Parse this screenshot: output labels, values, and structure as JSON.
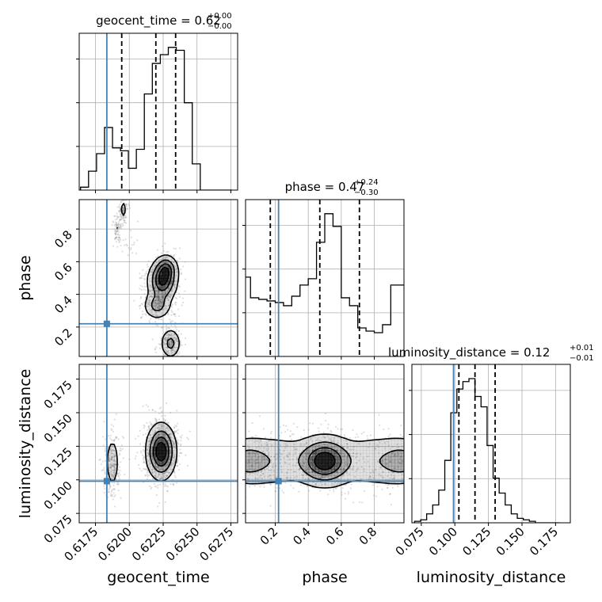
{
  "chart_data": {
    "type": "corner",
    "parameters": [
      "geocent_time",
      "phase",
      "luminosity_distance"
    ],
    "truth": {
      "geocent_time": 0.61834,
      "phase": 0.22,
      "luminosity_distance": 0.099,
      "color": "#4682b4"
    },
    "titles": [
      {
        "param": "geocent_time",
        "name": "geocent_time",
        "median": "0.62",
        "plus": "+0.00",
        "minus": "−0.00"
      },
      {
        "param": "phase",
        "name": "phase",
        "median": "0.47",
        "plus": "+0.24",
        "minus": "−0.30"
      },
      {
        "param": "luminosity_distance",
        "name": "luminosity_distance",
        "median": "0.12",
        "plus": "+0.01",
        "minus": "−0.01"
      }
    ],
    "axes": {
      "geocent_time": {
        "range": [
          0.6163,
          0.628
        ],
        "ticks": [
          0.6175,
          0.62,
          0.6225,
          0.625,
          0.6275
        ],
        "ticklabels": [
          "0.6175",
          "0.6200",
          "0.6225",
          "0.6250",
          "0.6275"
        ]
      },
      "phase": {
        "range": [
          0.02,
          0.98
        ],
        "ticks": [
          0.2,
          0.4,
          0.6,
          0.8
        ],
        "ticklabels": [
          "0.2",
          "0.4",
          "0.6",
          "0.8"
        ]
      },
      "luminosity_distance": {
        "range": [
          0.068,
          0.186
        ],
        "ticks": [
          0.075,
          0.1,
          0.125,
          0.15,
          0.175
        ],
        "ticklabels": [
          "0.075",
          "0.100",
          "0.125",
          "0.150",
          "0.175"
        ]
      }
    },
    "quantiles": {
      "geocent_time": [
        0.61944,
        0.62196,
        0.62342
      ],
      "phase": [
        0.17,
        0.47,
        0.71
      ],
      "luminosity_distance": [
        0.103,
        0.115,
        0.13
      ]
    },
    "histograms": {
      "geocent_time": {
        "edges": [
          0.6164,
          0.61699,
          0.61758,
          0.61817,
          0.61876,
          0.61935,
          0.61993,
          0.62052,
          0.62111,
          0.6217,
          0.62229,
          0.62288,
          0.62347,
          0.62406,
          0.62465,
          0.62524,
          0.62583,
          0.62642,
          0.62701,
          0.6276
        ],
        "counts": [
          0.02,
          0.13,
          0.25,
          0.43,
          0.29,
          0.27,
          0.15,
          0.28,
          0.66,
          0.87,
          0.93,
          0.98,
          0.96,
          0.6,
          0.18,
          0,
          0,
          0,
          0
        ]
      },
      "phase": {
        "edges": [
          0.0,
          0.05,
          0.1,
          0.15,
          0.2,
          0.25,
          0.3,
          0.35,
          0.4,
          0.45,
          0.5,
          0.55,
          0.6,
          0.65,
          0.7,
          0.75,
          0.8,
          0.85,
          0.9,
          0.95,
          1.0
        ],
        "counts": [
          0.5,
          0.37,
          0.36,
          0.35,
          0.34,
          0.32,
          0.38,
          0.45,
          0.49,
          0.72,
          0.9,
          0.82,
          0.37,
          0.32,
          0.18,
          0.16,
          0.15,
          0.2,
          0.45,
          0.45
        ]
      },
      "luminosity_distance": {
        "edges": [
          0.07,
          0.0745,
          0.079,
          0.0835,
          0.088,
          0.0925,
          0.097,
          0.1015,
          0.106,
          0.1105,
          0.115,
          0.1195,
          0.124,
          0.1285,
          0.133,
          0.1375,
          0.142,
          0.1465,
          0.151,
          0.1555,
          0.16,
          0.1645,
          0.169,
          0.1735,
          0.178
        ],
        "counts": [
          0.01,
          0.02,
          0.06,
          0.12,
          0.22,
          0.42,
          0.74,
          0.9,
          0.95,
          0.97,
          0.85,
          0.78,
          0.52,
          0.3,
          0.2,
          0.12,
          0.06,
          0.03,
          0.02,
          0.01,
          0,
          0,
          0,
          0
        ]
      }
    },
    "joint_distributions": [
      {
        "x": "geocent_time",
        "y": "phase",
        "centers": [
          {
            "x": 0.62245,
            "y": 0.48,
            "sx": 0.00058,
            "sy": 0.065,
            "w": 1.0
          },
          {
            "x": 0.62275,
            "y": 0.56,
            "sx": 0.00045,
            "sy": 0.045,
            "w": 0.6
          },
          {
            "x": 0.62205,
            "y": 0.33,
            "sx": 0.00055,
            "sy": 0.045,
            "w": 0.55
          },
          {
            "x": 0.62305,
            "y": 0.1,
            "sx": 0.0004,
            "sy": 0.05,
            "w": 0.55
          },
          {
            "x": 0.61955,
            "y": 0.92,
            "sx": 0.00018,
            "sy": 0.04,
            "w": 0.25
          },
          {
            "x": 0.61905,
            "y": 0.8,
            "sx": 0.00015,
            "sy": 0.035,
            "w": 0.18
          },
          {
            "x": 0.61995,
            "y": 0.74,
            "sx": 0.00035,
            "sy": 0.05,
            "w": 0.08
          }
        ]
      },
      {
        "x": "geocent_time",
        "y": "luminosity_distance",
        "centers": [
          {
            "x": 0.62235,
            "y": 0.121,
            "sx": 0.00058,
            "sy": 0.011,
            "w": 1.0
          },
          {
            "x": 0.61875,
            "y": 0.113,
            "sx": 0.00028,
            "sy": 0.011,
            "w": 0.32
          }
        ]
      },
      {
        "x": "phase",
        "y": "luminosity_distance",
        "centers": [
          {
            "x": 0.5,
            "y": 0.114,
            "sx": 0.09,
            "sy": 0.01,
            "w": 1.0
          },
          {
            "x": 0.02,
            "y": 0.114,
            "sx": 0.09,
            "sy": 0.01,
            "w": 0.45
          },
          {
            "x": 0.98,
            "y": 0.114,
            "sx": 0.09,
            "sy": 0.01,
            "w": 0.45
          },
          {
            "x": 0.22,
            "y": 0.114,
            "sx": 0.12,
            "sy": 0.012,
            "w": 0.3
          },
          {
            "x": 0.78,
            "y": 0.114,
            "sx": 0.12,
            "sy": 0.012,
            "w": 0.3
          }
        ]
      }
    ],
    "grid": true,
    "legend": "none"
  }
}
